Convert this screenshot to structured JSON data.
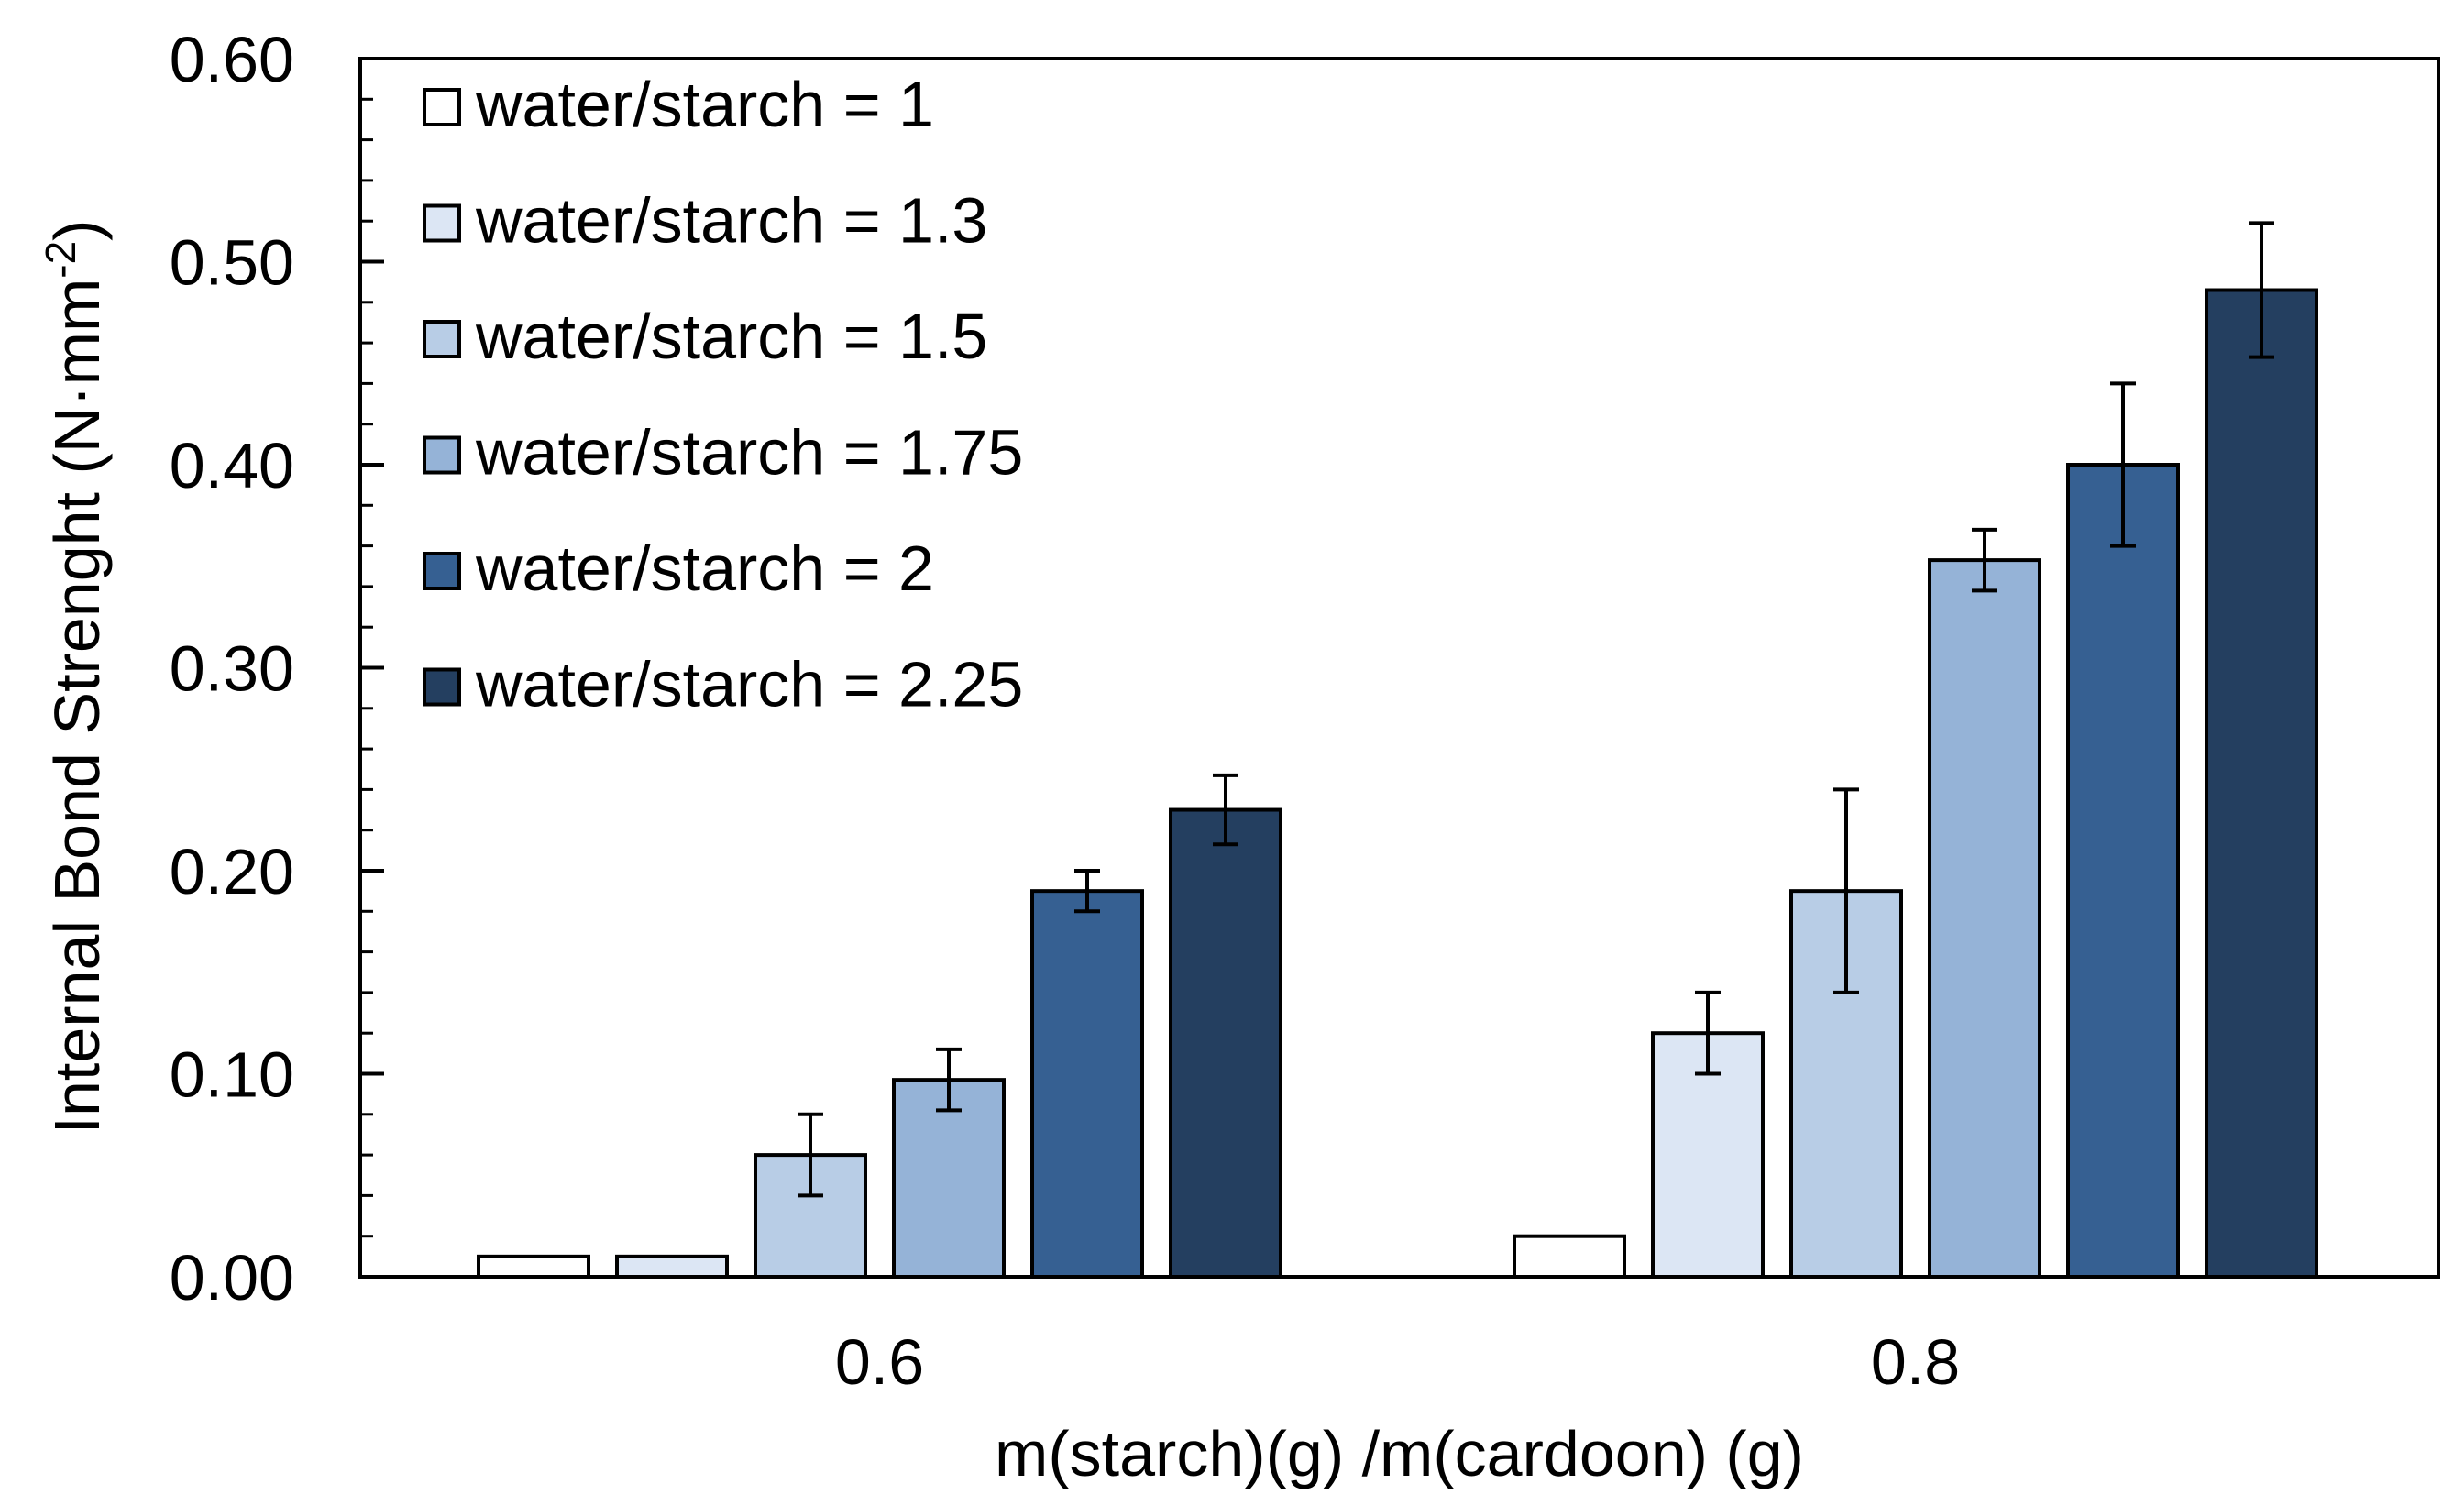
{
  "chart_data": {
    "type": "bar",
    "title": "",
    "xlabel": "m(starch)(g) /m(cardoon) (g)",
    "ylabel": "Internal Bond Strenght (N·mm",
    "ylabel_superscript": "-2",
    "ylabel_suffix": ")",
    "ylim": [
      0,
      0.6
    ],
    "yticks": [
      "0.00",
      "0.10",
      "0.20",
      "0.30",
      "0.40",
      "0.50",
      "0.60"
    ],
    "categories": [
      "0.6",
      "0.8"
    ],
    "legend_position": "top-left",
    "series": [
      {
        "name": "water/starch = 1",
        "color": "#ffffff",
        "values": [
          0.01,
          0.02
        ],
        "errors": [
          0.0,
          0.0
        ]
      },
      {
        "name": "water/starch = 1.3",
        "color": "#dce6f4",
        "values": [
          0.01,
          0.12
        ],
        "errors": [
          0.0,
          0.02
        ]
      },
      {
        "name": "water/starch = 1.5",
        "color": "#b8cde6",
        "values": [
          0.06,
          0.19
        ],
        "errors": [
          0.02,
          0.05
        ]
      },
      {
        "name": "water/starch = 1.75",
        "color": "#95b3d7",
        "values": [
          0.097,
          0.353
        ],
        "errors": [
          0.015,
          0.015
        ]
      },
      {
        "name": "water/starch = 2",
        "color": "#366092",
        "values": [
          0.19,
          0.4
        ],
        "errors": [
          0.01,
          0.04
        ]
      },
      {
        "name": "water/starch = 2.25",
        "color": "#243f60",
        "values": [
          0.23,
          0.486
        ],
        "errors": [
          0.017,
          0.033
        ]
      }
    ]
  }
}
